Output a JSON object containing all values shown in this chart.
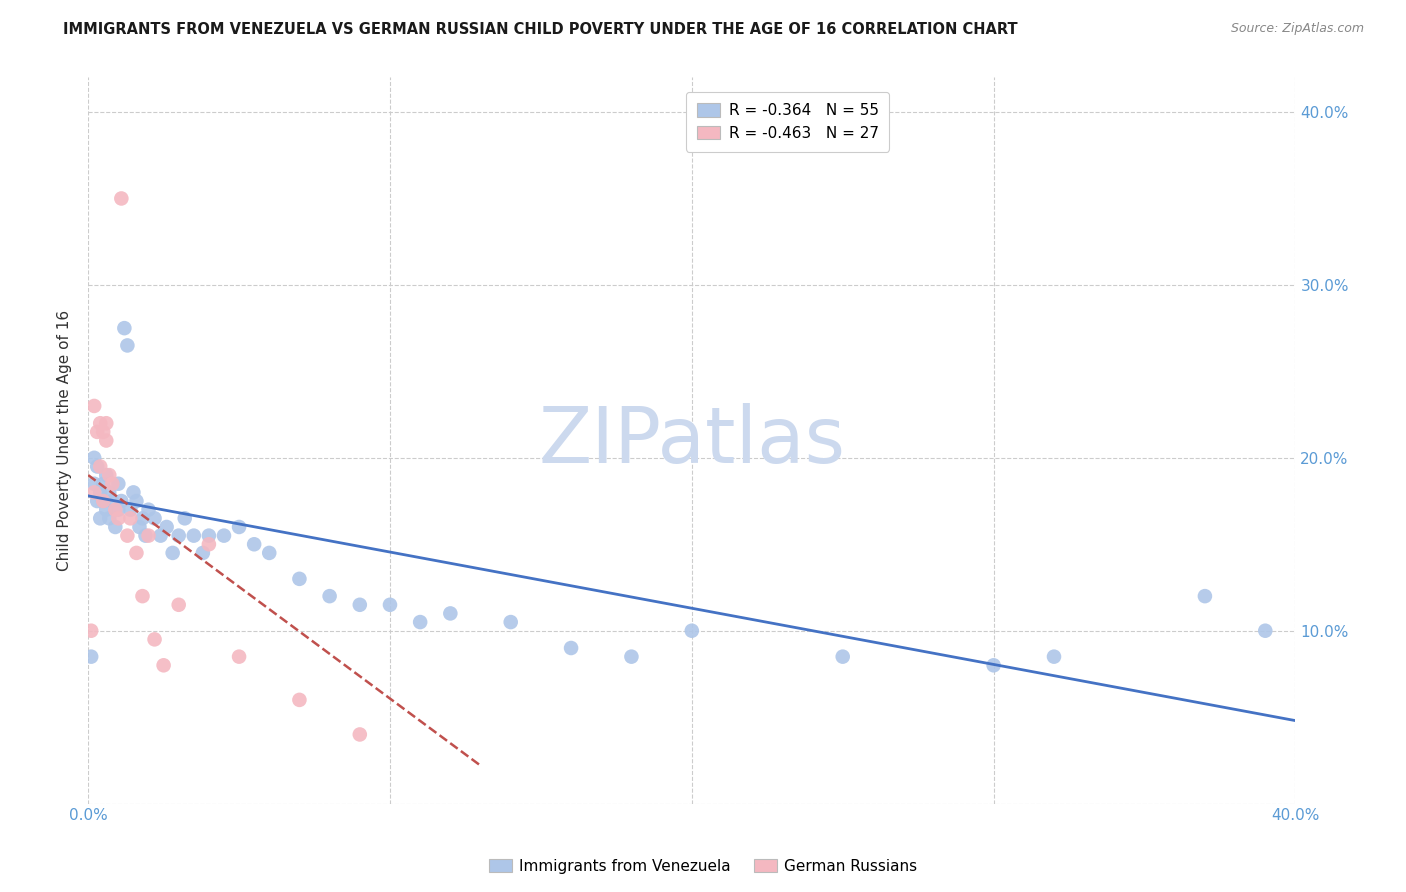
{
  "title": "IMMIGRANTS FROM VENEZUELA VS GERMAN RUSSIAN CHILD POVERTY UNDER THE AGE OF 16 CORRELATION CHART",
  "source": "Source: ZipAtlas.com",
  "ylabel": "Child Poverty Under the Age of 16",
  "xlim": [
    0.0,
    0.4
  ],
  "ylim": [
    0.0,
    0.42
  ],
  "xtick_positions": [
    0.0,
    0.1,
    0.2,
    0.3,
    0.4
  ],
  "xtick_labels": [
    "0.0%",
    "",
    "",
    "",
    "40.0%"
  ],
  "ytick_positions": [
    0.0,
    0.1,
    0.2,
    0.3,
    0.4
  ],
  "ytick_labels_right": [
    "",
    "10.0%",
    "20.0%",
    "30.0%",
    "40.0%"
  ],
  "legend1_label": "R = -0.364   N = 55",
  "legend2_label": "R = -0.463   N = 27",
  "legend1_color": "#aec6e8",
  "legend2_color": "#f4b8c1",
  "line1_color": "#4472c4",
  "line2_color": "#c0504d",
  "watermark": "ZIPatlas",
  "watermark_color": "#ccd9ee",
  "background_color": "#ffffff",
  "blue_scatter_x": [
    0.001,
    0.002,
    0.002,
    0.003,
    0.003,
    0.004,
    0.004,
    0.005,
    0.005,
    0.006,
    0.006,
    0.007,
    0.007,
    0.008,
    0.009,
    0.01,
    0.01,
    0.011,
    0.012,
    0.013,
    0.014,
    0.015,
    0.016,
    0.017,
    0.018,
    0.019,
    0.02,
    0.022,
    0.024,
    0.026,
    0.028,
    0.03,
    0.032,
    0.035,
    0.038,
    0.04,
    0.045,
    0.05,
    0.055,
    0.06,
    0.07,
    0.08,
    0.09,
    0.1,
    0.11,
    0.12,
    0.14,
    0.16,
    0.18,
    0.2,
    0.25,
    0.3,
    0.32,
    0.37,
    0.39
  ],
  "blue_scatter_y": [
    0.085,
    0.185,
    0.2,
    0.175,
    0.195,
    0.18,
    0.165,
    0.185,
    0.175,
    0.17,
    0.19,
    0.18,
    0.165,
    0.175,
    0.16,
    0.17,
    0.185,
    0.175,
    0.275,
    0.265,
    0.17,
    0.18,
    0.175,
    0.16,
    0.165,
    0.155,
    0.17,
    0.165,
    0.155,
    0.16,
    0.145,
    0.155,
    0.165,
    0.155,
    0.145,
    0.155,
    0.155,
    0.16,
    0.15,
    0.145,
    0.13,
    0.12,
    0.115,
    0.115,
    0.105,
    0.11,
    0.105,
    0.09,
    0.085,
    0.1,
    0.085,
    0.08,
    0.085,
    0.12,
    0.1
  ],
  "pink_scatter_x": [
    0.001,
    0.002,
    0.002,
    0.003,
    0.004,
    0.004,
    0.005,
    0.005,
    0.006,
    0.006,
    0.007,
    0.008,
    0.009,
    0.01,
    0.011,
    0.013,
    0.014,
    0.016,
    0.018,
    0.02,
    0.022,
    0.025,
    0.03,
    0.04,
    0.05,
    0.07,
    0.09
  ],
  "pink_scatter_y": [
    0.1,
    0.18,
    0.23,
    0.215,
    0.195,
    0.22,
    0.215,
    0.175,
    0.21,
    0.22,
    0.19,
    0.185,
    0.17,
    0.165,
    0.35,
    0.155,
    0.165,
    0.145,
    0.12,
    0.155,
    0.095,
    0.08,
    0.115,
    0.15,
    0.085,
    0.06,
    0.04
  ],
  "blue_line_x": [
    0.0,
    0.4
  ],
  "blue_line_y": [
    0.178,
    0.048
  ],
  "red_line_x": [
    0.0,
    0.13
  ],
  "red_line_y": [
    0.19,
    0.022
  ]
}
